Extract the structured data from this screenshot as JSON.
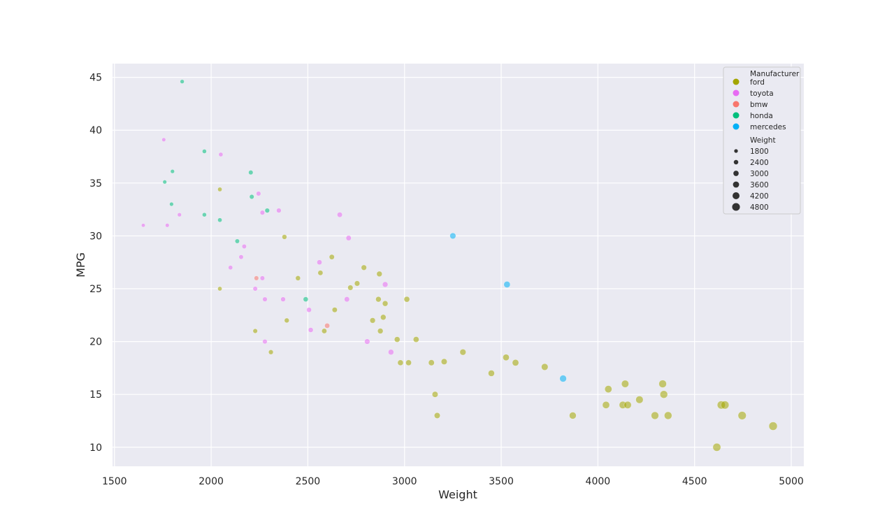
{
  "chart_data": {
    "type": "scatter",
    "title": "",
    "xlabel": "Weight",
    "ylabel": "MPG",
    "xlim": [
      1490,
      5065
    ],
    "ylim": [
      8.2,
      46.3
    ],
    "xticks": [
      1500,
      2000,
      2500,
      3000,
      3500,
      4000,
      4500,
      5000
    ],
    "yticks": [
      10,
      15,
      20,
      25,
      30,
      35,
      40,
      45
    ],
    "grid": true,
    "background": "#EAEAF2",
    "legend": {
      "placement": "top-right",
      "hue_title": "Manufacturer",
      "size_title": "Weight",
      "size_entries": [
        1800,
        2400,
        3000,
        3600,
        4200,
        4800
      ]
    },
    "colors": {
      "ford": "#A3A500",
      "toyota": "#E76BF3",
      "bmw": "#F8766D",
      "honda": "#00BF7D",
      "mercedes": "#00B0F6"
    },
    "series": [
      {
        "name": "ford",
        "points": [
          [
            2045,
            34.4
          ],
          [
            2045,
            25
          ],
          [
            2228,
            21
          ],
          [
            2309,
            19
          ],
          [
            2379,
            29.9
          ],
          [
            2391,
            22
          ],
          [
            2449,
            26
          ],
          [
            2565,
            26.5
          ],
          [
            2585,
            21
          ],
          [
            2624,
            28
          ],
          [
            2639,
            23
          ],
          [
            2720,
            25.1
          ],
          [
            2755,
            25.5
          ],
          [
            2790,
            27
          ],
          [
            2835,
            22
          ],
          [
            2865,
            24
          ],
          [
            2870,
            26.4
          ],
          [
            2875,
            21
          ],
          [
            2890,
            22.3
          ],
          [
            2900,
            23.6
          ],
          [
            2962,
            20.2
          ],
          [
            2979,
            18
          ],
          [
            3012,
            24
          ],
          [
            3021,
            18
          ],
          [
            3060,
            20.2
          ],
          [
            3139,
            18
          ],
          [
            3158,
            15
          ],
          [
            3169,
            13
          ],
          [
            3205,
            18.1
          ],
          [
            3302,
            19
          ],
          [
            3449,
            17
          ],
          [
            3525,
            18.5
          ],
          [
            3574,
            18
          ],
          [
            3725,
            17.6
          ],
          [
            3870,
            13
          ],
          [
            4042,
            14
          ],
          [
            4054,
            15.5
          ],
          [
            4129,
            14
          ],
          [
            4141,
            16
          ],
          [
            4154,
            14
          ],
          [
            4215,
            14.5
          ],
          [
            4295,
            13
          ],
          [
            4335,
            16
          ],
          [
            4341,
            15
          ],
          [
            4363,
            13
          ],
          [
            4615,
            10
          ],
          [
            4638,
            14
          ],
          [
            4657,
            14
          ],
          [
            4746,
            13
          ],
          [
            4906,
            12
          ]
        ]
      },
      {
        "name": "toyota",
        "points": [
          [
            1649,
            31
          ],
          [
            1755,
            39.1
          ],
          [
            1773,
            31
          ],
          [
            1836,
            32
          ],
          [
            2050,
            37.7
          ],
          [
            2100,
            27
          ],
          [
            2155,
            28
          ],
          [
            2171,
            29
          ],
          [
            2228,
            25
          ],
          [
            2245,
            34
          ],
          [
            2265,
            32.2
          ],
          [
            2265,
            26
          ],
          [
            2278,
            24
          ],
          [
            2278,
            20
          ],
          [
            2350,
            32.4
          ],
          [
            2372,
            24
          ],
          [
            2506,
            23
          ],
          [
            2515,
            21.1
          ],
          [
            2560,
            27.5
          ],
          [
            2665,
            32
          ],
          [
            2702,
            24
          ],
          [
            2711,
            29.8
          ],
          [
            2807,
            20
          ],
          [
            2900,
            25.4
          ],
          [
            2930,
            19
          ]
        ]
      },
      {
        "name": "bmw",
        "points": [
          [
            2234,
            26
          ],
          [
            2600,
            21.5
          ]
        ]
      },
      {
        "name": "honda",
        "points": [
          [
            1760,
            35.1
          ],
          [
            1795,
            33
          ],
          [
            1800,
            36.1
          ],
          [
            1850,
            44.6
          ],
          [
            1965,
            38
          ],
          [
            1965,
            32
          ],
          [
            2045,
            31.5
          ],
          [
            2135,
            29.5
          ],
          [
            2205,
            36
          ],
          [
            2210,
            33.7
          ],
          [
            2290,
            32.4
          ],
          [
            2489,
            24
          ]
        ]
      },
      {
        "name": "mercedes",
        "points": [
          [
            3250,
            30
          ],
          [
            3530,
            25.4
          ],
          [
            3820,
            16.5
          ]
        ]
      }
    ]
  }
}
